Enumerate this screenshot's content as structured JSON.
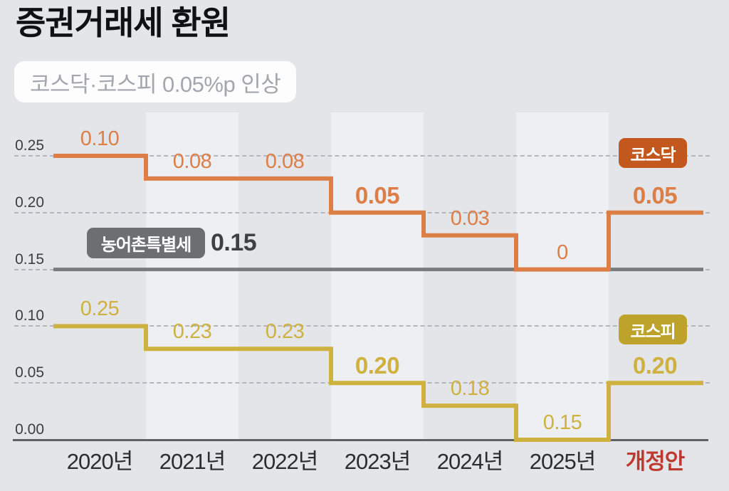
{
  "title": "증권거래세 환원",
  "subtitle": "코스닥·코스피 0.05%p 인상",
  "colors": {
    "background": "#e3e5e9",
    "stripe": "#edeff2",
    "kosdaq_line": "#dd7e46",
    "kosdaq_badge": "#c2581e",
    "kospi_line": "#cfb140",
    "kospi_badge": "#bda32c",
    "special_tax_line": "#7a7b7d",
    "special_tax_badge": "#6d6e70",
    "axis_text": "#2c2d30",
    "highlight_red": "#bf3a2e"
  },
  "chart_data": {
    "type": "line",
    "subtype": "step",
    "title": "증권거래세 환원",
    "subtitle": "코스닥·코스피 0.05%p 인상",
    "categories": [
      "2020년",
      "2021년",
      "2022년",
      "2023년",
      "2024년",
      "2025년",
      "개정안"
    ],
    "highlight_category": "개정안",
    "y_tick_values": [
      0.25,
      0.2,
      0.15,
      0.1,
      0.05,
      0.0
    ],
    "y_tick_labels": [
      "0.25",
      "0.20",
      "0.15",
      "0.10",
      "0.05",
      "0.00"
    ],
    "ylim": [
      0,
      0.25
    ],
    "grid": "dashed-horizontal",
    "legend_position": "right-inline-badges",
    "series": [
      {
        "name": "코스피",
        "color": "#cfb140",
        "badge_bg": "#bda32c",
        "values": [
          0.25,
          0.23,
          0.23,
          0.2,
          0.18,
          0.15,
          0.2
        ],
        "plot_offset": -0.15,
        "labels": [
          "0.25",
          "0.23",
          "0.23",
          "0.20",
          "0.18",
          "0.15",
          "0.20"
        ],
        "emphasized": [
          false,
          false,
          false,
          true,
          false,
          false,
          true
        ]
      },
      {
        "name": "코스닥",
        "color": "#dd7e46",
        "badge_bg": "#c2581e",
        "values": [
          0.1,
          0.08,
          0.08,
          0.05,
          0.03,
          0,
          0.05
        ],
        "plot_offset": 0.15,
        "labels": [
          "0.10",
          "0.08",
          "0.08",
          "0.05",
          "0.03",
          "0",
          "0.05"
        ],
        "emphasized": [
          false,
          false,
          false,
          true,
          false,
          false,
          true
        ]
      },
      {
        "name": "농어촌특별세",
        "color": "#7a7b7d",
        "badge_bg": "#6d6e70",
        "values": [
          0.15,
          0.15,
          0.15,
          0.15,
          0.15,
          0.15,
          0.15
        ],
        "plot_offset": 0,
        "flat_label": "0.15"
      }
    ]
  }
}
